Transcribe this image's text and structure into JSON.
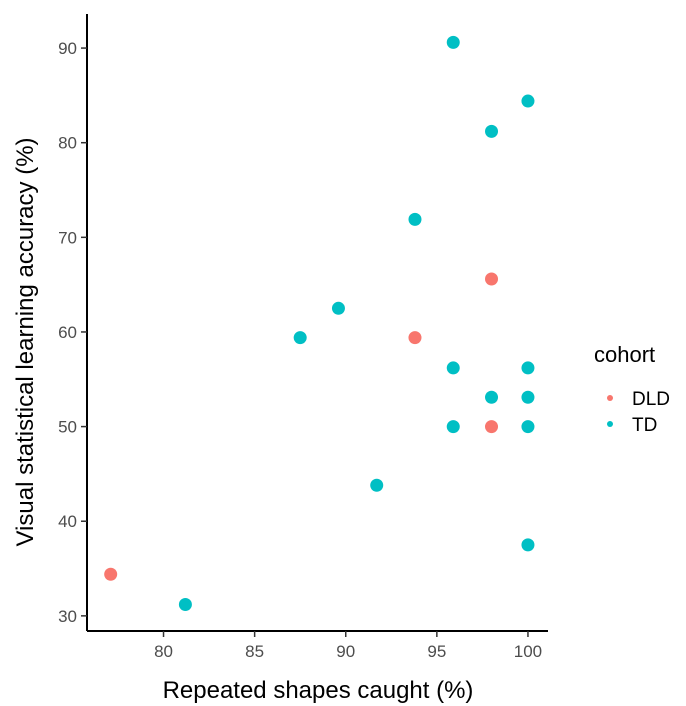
{
  "chart_data": {
    "type": "scatter",
    "xlabel": "Repeated shapes caught (%)",
    "ylabel": "Visual statistical learning accuracy (%)",
    "xlim": [
      75.8,
      101.1
    ],
    "ylim": [
      28.4,
      93.6
    ],
    "x_ticks": [
      80,
      85,
      90,
      95,
      100
    ],
    "y_ticks": [
      30,
      40,
      50,
      60,
      70,
      80,
      90
    ],
    "grid": false,
    "legend": {
      "title": "cohort",
      "position": "right"
    },
    "series": [
      {
        "name": "DLD",
        "color": "#F8766D",
        "points": [
          {
            "x": 77.1,
            "y": 34.4
          },
          {
            "x": 93.8,
            "y": 59.4
          },
          {
            "x": 98.0,
            "y": 65.6
          },
          {
            "x": 98.0,
            "y": 50.0
          }
        ]
      },
      {
        "name": "TD",
        "color": "#00BFC4",
        "points": [
          {
            "x": 81.2,
            "y": 31.2
          },
          {
            "x": 87.5,
            "y": 59.4
          },
          {
            "x": 89.6,
            "y": 62.5
          },
          {
            "x": 91.7,
            "y": 43.8
          },
          {
            "x": 93.8,
            "y": 71.9
          },
          {
            "x": 95.9,
            "y": 90.6
          },
          {
            "x": 95.9,
            "y": 56.2
          },
          {
            "x": 95.9,
            "y": 50.0
          },
          {
            "x": 98.0,
            "y": 81.2
          },
          {
            "x": 98.0,
            "y": 53.1
          },
          {
            "x": 100.0,
            "y": 84.4
          },
          {
            "x": 100.0,
            "y": 56.2
          },
          {
            "x": 100.0,
            "y": 53.1
          },
          {
            "x": 100.0,
            "y": 50.0
          },
          {
            "x": 100.0,
            "y": 37.5
          }
        ]
      }
    ]
  }
}
